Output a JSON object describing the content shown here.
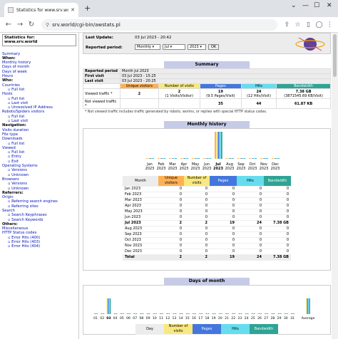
{
  "browser": {
    "tab_title": "Statistics for www.srv.world (201",
    "url": "srv.world/cgi-bin/awstats.pl"
  },
  "menu": {
    "title_line1": "Statistics for:",
    "title_line2": "www.srv.world",
    "items": [
      {
        "t": "Summary",
        "k": "a"
      },
      {
        "t": "When:",
        "k": "h"
      },
      {
        "t": "Monthly history",
        "k": "a"
      },
      {
        "t": "Days of month",
        "k": "a"
      },
      {
        "t": "Days of week",
        "k": "a"
      },
      {
        "t": "Hours",
        "k": "a"
      },
      {
        "t": "Who:",
        "k": "h"
      },
      {
        "t": "Countries",
        "k": "a"
      },
      {
        "t": "Full list",
        "k": "i"
      },
      {
        "t": "Hosts",
        "k": "a"
      },
      {
        "t": "Full list",
        "k": "i"
      },
      {
        "t": "Last visit",
        "k": "i"
      },
      {
        "t": "Unresolved IP Address",
        "k": "i"
      },
      {
        "t": "Robots/Spiders visitors",
        "k": "a"
      },
      {
        "t": "Full list",
        "k": "i"
      },
      {
        "t": "Last visit",
        "k": "i"
      },
      {
        "t": "Navigation:",
        "k": "h"
      },
      {
        "t": "Visits duration",
        "k": "a"
      },
      {
        "t": "File type",
        "k": "a"
      },
      {
        "t": "Downloads",
        "k": "a"
      },
      {
        "t": "Full list",
        "k": "i"
      },
      {
        "t": "Viewed",
        "k": "a"
      },
      {
        "t": "Full list",
        "k": "i"
      },
      {
        "t": "Entry",
        "k": "i"
      },
      {
        "t": "Exit",
        "k": "i"
      },
      {
        "t": "Operating Systems",
        "k": "a"
      },
      {
        "t": "Versions",
        "k": "i"
      },
      {
        "t": "Unknown",
        "k": "i"
      },
      {
        "t": "Browsers",
        "k": "a"
      },
      {
        "t": "Versions",
        "k": "i"
      },
      {
        "t": "Unknown",
        "k": "i"
      },
      {
        "t": "Referrers:",
        "k": "h"
      },
      {
        "t": "Origin",
        "k": "a"
      },
      {
        "t": "Referring search engines",
        "k": "i"
      },
      {
        "t": "Referring sites",
        "k": "i"
      },
      {
        "t": "Search",
        "k": "a"
      },
      {
        "t": "Search Keyphrases",
        "k": "i"
      },
      {
        "t": "Search Keywords",
        "k": "i"
      },
      {
        "t": "Others:",
        "k": "h"
      },
      {
        "t": "Miscellaneous",
        "k": "a"
      },
      {
        "t": "HTTP Status codes",
        "k": "a"
      },
      {
        "t": "Error Hits (400)",
        "k": "i"
      },
      {
        "t": "Error Hits (403)",
        "k": "i"
      },
      {
        "t": "Error Hits (404)",
        "k": "i"
      }
    ]
  },
  "header": {
    "last_update_label": "Last Update:",
    "last_update_value": "03 Jul 2023 - 20:42",
    "period_label": "Reported period:",
    "period_select": "Monthly",
    "month_select": "Jul",
    "year_select": "2023",
    "ok_label": "OK"
  },
  "summary": {
    "title": "Summary",
    "reported_period_label": "Reported period",
    "reported_period_value": "Month Jul 2023",
    "first_visit_label": "First visit",
    "first_visit_value": "03 Jul 2023 - 15:25",
    "last_visit_label": "Last visit",
    "last_visit_value": "03 Jul 2023 - 20:25",
    "col_unique": "Unique visitors",
    "col_visits": "Number of visits",
    "col_pages": "Pages",
    "col_hits": "Hits",
    "col_bw": "Bandwidth",
    "viewed_label": "Viewed traffic *",
    "viewed_unique": "2",
    "viewed_visits": "2",
    "viewed_visits_sub": "(1 Visits/Visitor)",
    "viewed_pages": "19",
    "viewed_pages_sub": "(9.5 Pages/Visit)",
    "viewed_hits": "24",
    "viewed_hits_sub": "(12 Hits/Visit)",
    "viewed_bw": "7.38 GB",
    "viewed_bw_sub": "(3871545.69 KB/Visit)",
    "notviewed_label": "Not viewed traffic *",
    "notviewed_pages": "35",
    "notviewed_hits": "44",
    "notviewed_bw": "61.87 KB",
    "note": "* Not viewed traffic includes traffic generated by robots, worms, or replies with special HTTP status codes."
  },
  "monthly": {
    "title": "Monthly history",
    "col_month": "Month",
    "col_unique": "Unique visitors",
    "col_visits": "Number of visits",
    "col_pages": "Pages",
    "col_hits": "Hits",
    "col_bw": "Bandwidth",
    "axis_labels": [
      {
        "m": "Jan",
        "y": "2023"
      },
      {
        "m": "Feb",
        "y": "2023"
      },
      {
        "m": "Mar",
        "y": "2023"
      },
      {
        "m": "Apr",
        "y": "2023"
      },
      {
        "m": "May",
        "y": "2023"
      },
      {
        "m": "Jun",
        "y": "2023"
      },
      {
        "m": "Jul",
        "y": "2023"
      },
      {
        "m": "Aug",
        "y": "2023"
      },
      {
        "m": "Sep",
        "y": "2023"
      },
      {
        "m": "Oct",
        "y": "2023"
      },
      {
        "m": "Nov",
        "y": "2023"
      },
      {
        "m": "Dec",
        "y": "2023"
      }
    ],
    "rows": [
      [
        "Jan 2023",
        "0",
        "0",
        "0",
        "0",
        "0"
      ],
      [
        "Feb 2023",
        "0",
        "0",
        "0",
        "0",
        "0"
      ],
      [
        "Mar 2023",
        "0",
        "0",
        "0",
        "0",
        "0"
      ],
      [
        "Apr 2023",
        "0",
        "0",
        "0",
        "0",
        "0"
      ],
      [
        "May 2023",
        "0",
        "0",
        "0",
        "0",
        "0"
      ],
      [
        "Jun 2023",
        "0",
        "0",
        "0",
        "0",
        "0"
      ],
      [
        "Jul 2023",
        "2",
        "2",
        "19",
        "24",
        "7.38 GB"
      ],
      [
        "Aug 2023",
        "0",
        "0",
        "0",
        "0",
        "0"
      ],
      [
        "Sep 2023",
        "0",
        "0",
        "0",
        "0",
        "0"
      ],
      [
        "Oct 2023",
        "0",
        "0",
        "0",
        "0",
        "0"
      ],
      [
        "Nov 2023",
        "0",
        "0",
        "0",
        "0",
        "0"
      ],
      [
        "Dec 2023",
        "0",
        "0",
        "0",
        "0",
        "0"
      ],
      [
        "Total",
        "2",
        "2",
        "19",
        "24",
        "7.38 GB"
      ]
    ]
  },
  "days": {
    "title": "Days of month",
    "average_label": "Average",
    "highlight_days": [
      "01",
      "02",
      "03",
      "04"
    ],
    "col_day": "Day",
    "col_visits": "Number of visits",
    "col_pages": "Pages",
    "col_hits": "Hits",
    "col_bw": "Bandwidth"
  },
  "chart_data": [
    {
      "type": "bar",
      "title": "Monthly history",
      "categories": [
        "Jan 2023",
        "Feb 2023",
        "Mar 2023",
        "Apr 2023",
        "May 2023",
        "Jun 2023",
        "Jul 2023",
        "Aug 2023",
        "Sep 2023",
        "Oct 2023",
        "Nov 2023",
        "Dec 2023"
      ],
      "series": [
        {
          "name": "Unique visitors",
          "values": [
            0,
            0,
            0,
            0,
            0,
            0,
            2,
            0,
            0,
            0,
            0,
            0
          ]
        },
        {
          "name": "Number of visits",
          "values": [
            0,
            0,
            0,
            0,
            0,
            0,
            2,
            0,
            0,
            0,
            0,
            0
          ]
        },
        {
          "name": "Pages",
          "values": [
            0,
            0,
            0,
            0,
            0,
            0,
            19,
            0,
            0,
            0,
            0,
            0
          ]
        },
        {
          "name": "Hits",
          "values": [
            0,
            0,
            0,
            0,
            0,
            0,
            24,
            0,
            0,
            0,
            0,
            0
          ]
        },
        {
          "name": "Bandwidth",
          "values": [
            0,
            0,
            0,
            0,
            0,
            0,
            7.38,
            0,
            0,
            0,
            0,
            0
          ]
        }
      ]
    },
    {
      "type": "bar",
      "title": "Days of month",
      "categories": [
        "01",
        "02",
        "03",
        "04",
        "05",
        "06",
        "07",
        "08",
        "09",
        "10",
        "11",
        "12",
        "13",
        "14",
        "15",
        "16",
        "17",
        "18",
        "19",
        "20",
        "21",
        "22",
        "23",
        "24",
        "25",
        "26",
        "27",
        "28",
        "29",
        "30",
        "31",
        "Average"
      ],
      "series": [
        {
          "name": "Number of visits",
          "values": [
            0,
            0,
            2,
            0,
            0,
            0,
            0,
            0,
            0,
            0,
            0,
            0,
            0,
            0,
            0,
            0,
            0,
            0,
            0,
            0,
            0,
            0,
            0,
            0,
            0,
            0,
            0,
            0,
            0,
            0,
            0,
            2
          ]
        },
        {
          "name": "Pages",
          "values": [
            0,
            0,
            19,
            0,
            0,
            0,
            0,
            0,
            0,
            0,
            0,
            0,
            0,
            0,
            0,
            0,
            0,
            0,
            0,
            0,
            0,
            0,
            0,
            0,
            0,
            0,
            0,
            0,
            0,
            0,
            0,
            19
          ]
        },
        {
          "name": "Hits",
          "values": [
            0,
            0,
            24,
            0,
            0,
            0,
            0,
            0,
            0,
            0,
            0,
            0,
            0,
            0,
            0,
            0,
            0,
            0,
            0,
            0,
            0,
            0,
            0,
            0,
            0,
            0,
            0,
            0,
            0,
            0,
            0,
            24
          ]
        },
        {
          "name": "Bandwidth",
          "values": [
            0,
            0,
            7.38,
            0,
            0,
            0,
            0,
            0,
            0,
            0,
            0,
            0,
            0,
            0,
            0,
            0,
            0,
            0,
            0,
            0,
            0,
            0,
            0,
            0,
            0,
            0,
            0,
            0,
            0,
            0,
            0,
            7.38
          ]
        }
      ]
    }
  ],
  "colors": {
    "unique": "#ffb055",
    "visits": "#f8e880",
    "pages": "#4477dd",
    "hits": "#66ddee",
    "bandwidth": "#2ea495",
    "section_title": "#c6cbe8"
  }
}
